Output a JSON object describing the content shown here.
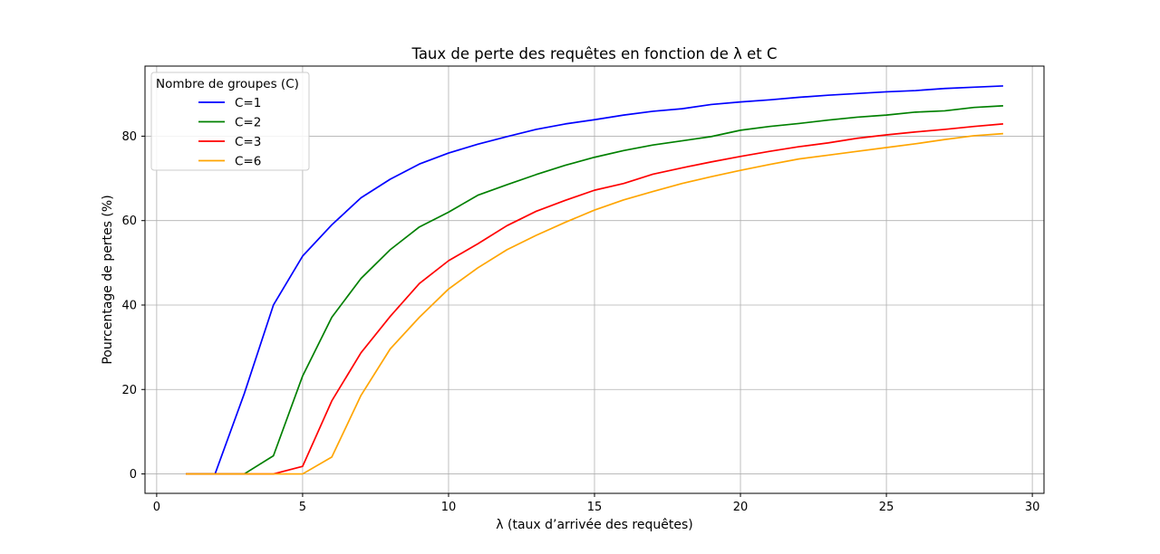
{
  "chart_data": {
    "type": "line",
    "title": "Taux de perte des requêtes en fonction de λ et C",
    "xlabel": "λ (taux d’arrivée des requêtes)",
    "ylabel": "Pourcentage de pertes (%)",
    "xlim": [
      -0.4,
      30.4
    ],
    "ylim": [
      -4.6,
      96.6
    ],
    "xticks": [
      0,
      5,
      10,
      15,
      20,
      25,
      30
    ],
    "yticks": [
      0,
      20,
      40,
      60,
      80
    ],
    "grid": true,
    "legend": {
      "title": "Nombre de groupes (C)",
      "placement": "top-left"
    },
    "x": [
      1,
      2,
      3,
      4,
      5,
      6,
      7,
      8,
      9,
      10,
      11,
      12,
      13,
      14,
      15,
      16,
      17,
      18,
      19,
      20,
      21,
      22,
      23,
      24,
      25,
      26,
      27,
      28,
      29
    ],
    "series": [
      {
        "name": "C=1",
        "color": "#0000ff",
        "values": [
          0,
          0,
          19,
          40,
          51.6,
          59,
          65.4,
          69.8,
          73.4,
          76,
          78.1,
          79.9,
          81.6,
          82.9,
          83.9,
          85,
          85.9,
          86.5,
          87.5,
          88.1,
          88.6,
          89.2,
          89.7,
          90.1,
          90.5,
          90.8,
          91.3,
          91.6,
          91.9
        ]
      },
      {
        "name": "C=2",
        "color": "#008000",
        "values": [
          0,
          0,
          0,
          4.3,
          23.2,
          37.1,
          46.3,
          53.1,
          58.5,
          62,
          66,
          68.5,
          70.9,
          73.1,
          75,
          76.6,
          77.9,
          78.9,
          79.9,
          81.4,
          82.3,
          83,
          83.8,
          84.5,
          85,
          85.7,
          86,
          86.8,
          87.2
        ]
      },
      {
        "name": "C=3",
        "color": "#ff0000",
        "values": [
          0,
          0,
          0,
          0,
          1.8,
          17.3,
          28.7,
          37.3,
          45.1,
          50.5,
          54.5,
          58.8,
          62.2,
          64.8,
          67.2,
          68.8,
          71,
          72.5,
          73.9,
          75.2,
          76.4,
          77.5,
          78.4,
          79.5,
          80.3,
          81,
          81.6,
          82.3,
          82.9
        ]
      },
      {
        "name": "C=6",
        "color": "#ffa500",
        "values": [
          0,
          0,
          0,
          0,
          0,
          4,
          18.6,
          29.6,
          37.1,
          43.8,
          48.8,
          53.1,
          56.5,
          59.6,
          62.5,
          64.9,
          66.9,
          68.8,
          70.4,
          71.9,
          73.3,
          74.6,
          75.5,
          76.4,
          77.3,
          78.2,
          79.2,
          80.1,
          80.6
        ]
      }
    ]
  }
}
